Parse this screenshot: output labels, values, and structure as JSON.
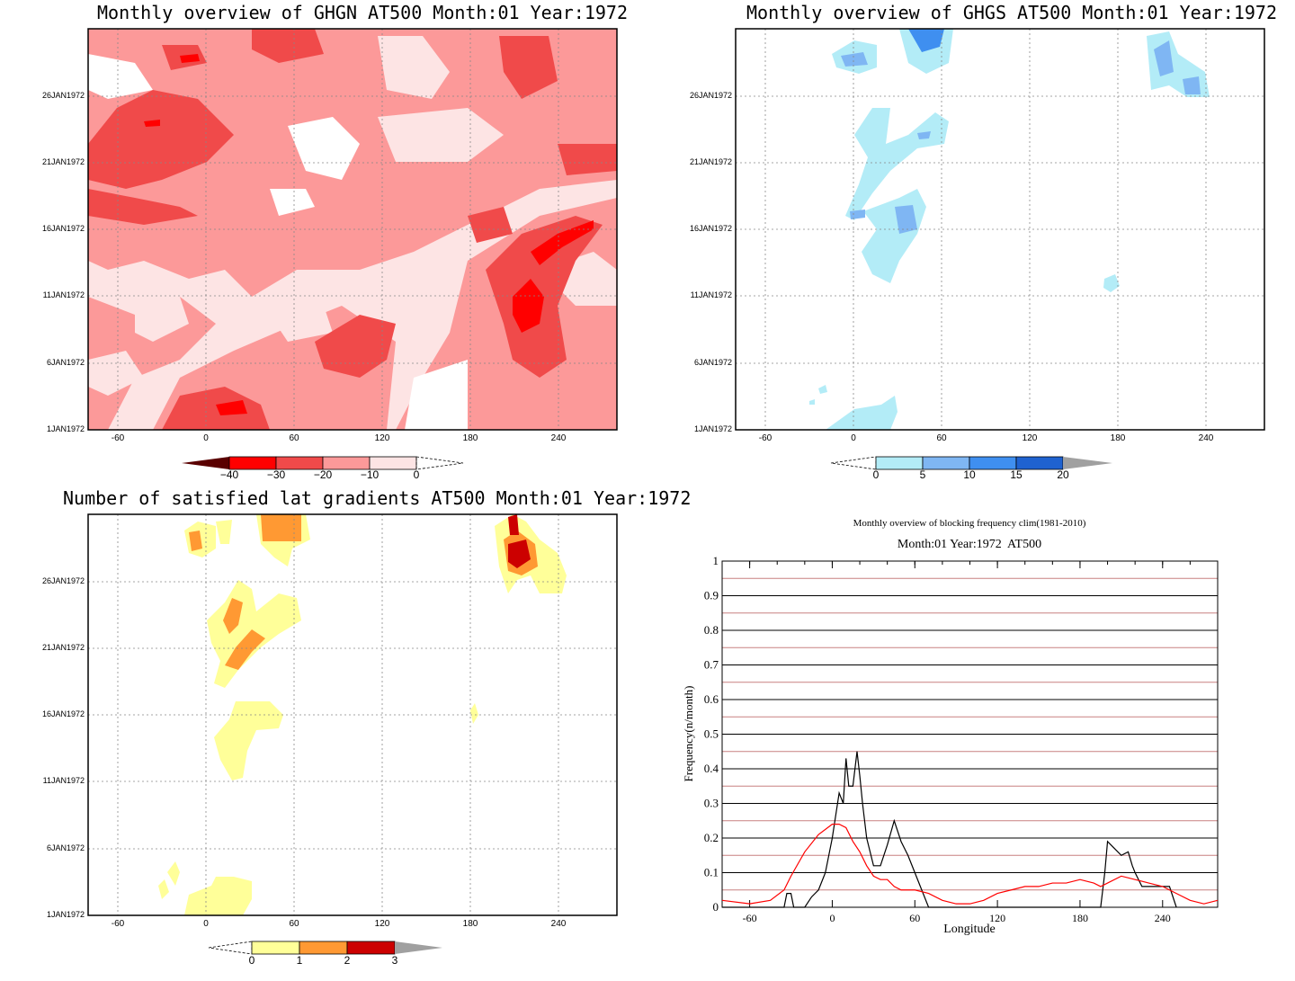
{
  "panels": {
    "ghgn": {
      "title": "Monthly overview of GHGN AT500 Month:01 Year:1972",
      "colorbar_labels": [
        "−40",
        "−30",
        "−20",
        "−10",
        "0"
      ],
      "colors": [
        "#5a0000",
        "#ff0000",
        "#f04a4a",
        "#fc9999",
        "#fde4e4"
      ]
    },
    "ghgs": {
      "title": "Monthly overview of GHGS AT500 Month:01 Year:1972",
      "colorbar_labels": [
        "0",
        "5",
        "10",
        "15",
        "20"
      ],
      "colors": [
        "#b3ecf7",
        "#7fb6f3",
        "#3f8ff0",
        "#1f62d0",
        "#a0a0a0"
      ]
    },
    "lat": {
      "title": "Number of satisfied lat gradients AT500 Month:01 Year:1972",
      "colorbar_labels": [
        "0",
        "1",
        "2",
        "3"
      ],
      "colors": [
        "#ffff99",
        "#ff9933",
        "#cc0000",
        "#a0a0a0"
      ]
    },
    "freq": {
      "title": "Monthly overview of blocking frequency clim(1981-2010)",
      "subtitle": "Month:01 Year:1972  AT500"
    }
  },
  "y_ticks": [
    "26JAN1972",
    "21JAN1972",
    "16JAN1972",
    "11JAN1972",
    "6JAN1972",
    "1JAN1972"
  ],
  "x_ticks": [
    "-60",
    "0",
    "60",
    "120",
    "180",
    "240"
  ],
  "chart_data": [
    {
      "type": "heatmap",
      "title": "Monthly overview of GHGN AT500 Month:01 Year:1972",
      "x_range": [
        -80,
        280
      ],
      "y_range": [
        "1JAN1972",
        "31JAN1972"
      ],
      "color_levels": [
        -40,
        -30,
        -20,
        -10,
        0
      ]
    },
    {
      "type": "heatmap",
      "title": "Monthly overview of GHGS AT500 Month:01 Year:1972",
      "x_range": [
        -80,
        280
      ],
      "y_range": [
        "1JAN1972",
        "31JAN1972"
      ],
      "color_levels": [
        0,
        5,
        10,
        15,
        20
      ]
    },
    {
      "type": "heatmap",
      "title": "Number of satisfied lat gradients AT500 Month:01 Year:1972",
      "x_range": [
        -80,
        280
      ],
      "y_range": [
        "1JAN1972",
        "31JAN1972"
      ],
      "color_levels": [
        0,
        1,
        2,
        3
      ]
    },
    {
      "type": "line",
      "title": "Monthly overview of blocking frequency clim(1981-2010)",
      "subtitle": "Month:01 Year:1972  AT500",
      "xlabel": "Longitude",
      "ylabel": "Frequency(n/month)",
      "xlim": [
        -80,
        280
      ],
      "ylim": [
        0,
        1
      ],
      "x_ticks": [
        -60,
        0,
        60,
        120,
        180,
        240
      ],
      "y_ticks": [
        0,
        0.1,
        0.2,
        0.3,
        0.4,
        0.5,
        0.6,
        0.7,
        0.8,
        0.9,
        1
      ],
      "grid": true,
      "series": [
        {
          "color": "#000000",
          "x": [
            -80,
            -35,
            -33,
            -30,
            -28,
            -20,
            -15,
            -10,
            -5,
            0,
            5,
            8,
            10,
            12,
            15,
            18,
            20,
            22,
            25,
            30,
            35,
            40,
            45,
            50,
            55,
            60,
            65,
            70,
            75,
            195,
            198,
            200,
            205,
            210,
            215,
            218,
            220,
            225,
            230,
            235,
            240,
            245,
            250
          ],
          "y": [
            0,
            0,
            0.04,
            0.04,
            0,
            0,
            0.03,
            0.05,
            0.1,
            0.2,
            0.33,
            0.3,
            0.43,
            0.35,
            0.35,
            0.45,
            0.38,
            0.3,
            0.2,
            0.12,
            0.12,
            0.18,
            0.25,
            0.19,
            0.15,
            0.1,
            0.05,
            0,
            0,
            0,
            0.1,
            0.19,
            0.17,
            0.15,
            0.16,
            0.12,
            0.1,
            0.06,
            0.06,
            0.06,
            0.06,
            0.06,
            0
          ]
        },
        {
          "color": "#ff0000",
          "x": [
            -80,
            -60,
            -45,
            -35,
            -30,
            -20,
            -10,
            0,
            5,
            10,
            15,
            20,
            25,
            30,
            35,
            40,
            45,
            50,
            55,
            60,
            70,
            80,
            90,
            100,
            110,
            120,
            130,
            140,
            150,
            160,
            170,
            180,
            190,
            195,
            200,
            210,
            220,
            230,
            240,
            250,
            260,
            270,
            280
          ],
          "y": [
            0.02,
            0.01,
            0.02,
            0.05,
            0.09,
            0.16,
            0.21,
            0.24,
            0.24,
            0.23,
            0.19,
            0.16,
            0.12,
            0.09,
            0.08,
            0.08,
            0.06,
            0.05,
            0.05,
            0.05,
            0.04,
            0.02,
            0.01,
            0.01,
            0.02,
            0.04,
            0.05,
            0.06,
            0.06,
            0.07,
            0.07,
            0.08,
            0.07,
            0.06,
            0.07,
            0.09,
            0.08,
            0.07,
            0.06,
            0.04,
            0.02,
            0.01,
            0.02
          ]
        }
      ]
    }
  ]
}
